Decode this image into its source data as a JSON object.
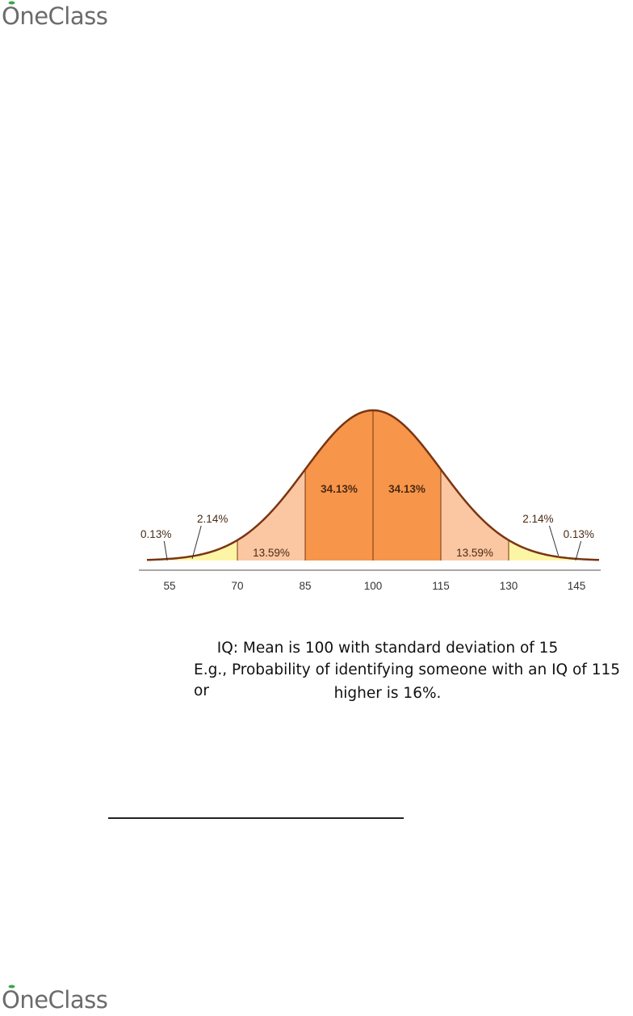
{
  "brand": {
    "name": "OneClass"
  },
  "chart_data": {
    "type": "area",
    "title": "",
    "xlabel": "",
    "ylabel": "",
    "x_ticks": [
      55,
      70,
      85,
      100,
      115,
      130,
      145
    ],
    "mean": 100,
    "sd": 15,
    "regions": [
      {
        "from": 55,
        "to": 70,
        "label": "2.14%",
        "color": "#fdf5a6"
      },
      {
        "from": 70,
        "to": 85,
        "label": "13.59%",
        "color": "#fbc7a2"
      },
      {
        "from": 85,
        "to": 100,
        "label": "34.13%",
        "color": "#f7954a"
      },
      {
        "from": 100,
        "to": 115,
        "label": "34.13%",
        "color": "#f7954a"
      },
      {
        "from": 115,
        "to": 130,
        "label": "13.59%",
        "color": "#fbc7a2"
      },
      {
        "from": 130,
        "to": 145,
        "label": "2.14%",
        "color": "#fdf5a6"
      }
    ],
    "tail_labels": {
      "left": "0.13%",
      "right": "0.13%"
    },
    "grid": false,
    "curve_color": "#7a3512"
  },
  "caption": {
    "line1": "IQ: Mean is 100 with standard deviation of 15",
    "line2": "E.g., Probability of identifying someone with an IQ of 115 or",
    "line3": "higher is 16%."
  }
}
